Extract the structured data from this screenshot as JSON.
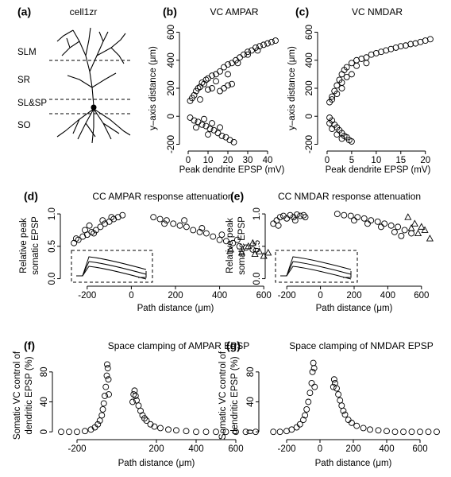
{
  "neuron_diagram": {
    "panel_label": "(a)",
    "title": "cell1zr",
    "layers": [
      "SLM",
      "SR",
      "SL&SP",
      "SO"
    ]
  },
  "chart_data": [
    {
      "type": "scatter",
      "panel_label": "(b)",
      "title": "VC AMPAR",
      "xlabel": "Peak dendrite EPSP (mV)",
      "ylabel": "y–axis distance (μm)",
      "xlim": [
        -2,
        46
      ],
      "ylim": [
        -220,
        620
      ],
      "xticks": [
        0,
        10,
        20,
        30,
        40
      ],
      "yticks": [
        -200,
        0,
        200,
        400,
        600
      ],
      "series": [
        {
          "marker": "circle",
          "color": "#000000",
          "x": [
            1,
            2,
            3,
            4,
            5,
            6,
            7,
            8,
            9,
            10,
            12,
            14,
            16,
            18,
            20,
            22,
            24,
            26,
            28,
            30,
            32,
            34,
            36,
            38,
            40,
            42,
            44,
            16,
            18,
            20,
            22,
            10,
            12,
            25,
            30,
            35,
            6,
            14,
            20,
            1,
            3,
            5,
            7,
            9,
            11,
            13,
            15,
            17,
            19,
            21,
            23,
            8,
            12,
            16,
            4,
            10
          ],
          "values": [
            110,
            130,
            150,
            180,
            200,
            210,
            240,
            230,
            260,
            270,
            290,
            300,
            320,
            350,
            370,
            380,
            400,
            420,
            440,
            460,
            470,
            490,
            500,
            510,
            520,
            530,
            540,
            180,
            200,
            220,
            230,
            190,
            200,
            380,
            440,
            470,
            120,
            250,
            300,
            -10,
            -30,
            -40,
            -60,
            -70,
            -90,
            -100,
            -120,
            -140,
            -150,
            -170,
            -185,
            -20,
            -50,
            -80,
            -80,
            -130
          ]
        }
      ]
    },
    {
      "type": "scatter",
      "panel_label": "(c)",
      "title": "VC NMDAR",
      "xlabel": "Peak dendrite EPSP (mV)",
      "ylabel": "y–axis distance (μm)",
      "xlim": [
        -0.8,
        21.5
      ],
      "ylim": [
        -220,
        620
      ],
      "xticks": [
        0,
        5,
        10,
        15,
        20
      ],
      "yticks": [
        -200,
        0,
        200,
        400,
        600
      ],
      "series": [
        {
          "marker": "circle",
          "color": "#000000",
          "x": [
            0.5,
            1,
            1.5,
            2,
            2.5,
            3,
            3.5,
            4,
            5,
            6,
            7,
            8,
            9,
            10,
            11,
            12,
            13,
            14,
            15,
            16,
            17,
            18,
            19,
            20,
            21,
            2,
            3,
            4,
            1,
            5,
            3,
            6,
            8,
            0.5,
            1,
            1.5,
            2,
            2.5,
            3,
            3.5,
            4,
            4.5,
            5,
            1,
            2,
            3,
            0.5
          ],
          "values": [
            100,
            140,
            180,
            220,
            260,
            300,
            330,
            350,
            380,
            400,
            410,
            420,
            440,
            450,
            460,
            470,
            480,
            490,
            500,
            505,
            515,
            520,
            530,
            540,
            550,
            160,
            240,
            280,
            120,
            300,
            200,
            360,
            380,
            -10,
            -30,
            -60,
            -80,
            -100,
            -120,
            -140,
            -150,
            -170,
            -180,
            -90,
            -130,
            -160,
            -50
          ]
        }
      ]
    },
    {
      "type": "scatter",
      "panel_label": "(d)",
      "title": "CC AMPAR response attenuation",
      "xlabel": "Path distance (μm)",
      "ylabel": [
        "Relative peak",
        "somatic EPSP"
      ],
      "xlim": [
        -300,
        700
      ],
      "ylim": [
        -0.03,
        1.05
      ],
      "xticks": [
        -200,
        0,
        200,
        400,
        600
      ],
      "yticks": [
        {
          "value": 0,
          "label": "0.0"
        },
        0.5,
        {
          "value": 1,
          "label": "1.0"
        }
      ],
      "series": [
        {
          "marker": "circle",
          "color": "#000000",
          "x": [
            -260,
            -240,
            -220,
            -200,
            -180,
            -160,
            -140,
            -120,
            -100,
            -80,
            -60,
            -40,
            -250,
            -210,
            -170,
            -130,
            -90,
            -190,
            100,
            130,
            160,
            190,
            220,
            250,
            280,
            310,
            340,
            370,
            400,
            430,
            460,
            490,
            520,
            550,
            150,
            240,
            320,
            410,
            480
          ],
          "values": [
            0.55,
            0.6,
            0.65,
            0.68,
            0.72,
            0.75,
            0.8,
            0.85,
            0.88,
            0.92,
            0.95,
            0.98,
            0.62,
            0.75,
            0.7,
            0.9,
            0.95,
            0.82,
            0.95,
            0.92,
            0.9,
            0.85,
            0.82,
            0.8,
            0.75,
            0.72,
            0.7,
            0.65,
            0.6,
            0.58,
            0.55,
            0.5,
            0.48,
            0.45,
            0.85,
            0.9,
            0.78,
            0.68,
            0.6
          ]
        },
        {
          "marker": "triangle",
          "color": "#000000",
          "x": [
            450,
            500,
            530,
            560,
            580,
            600,
            620,
            550
          ],
          "values": [
            0.45,
            0.4,
            0.5,
            0.38,
            0.42,
            0.35,
            0.4,
            0.55
          ]
        }
      ]
    },
    {
      "type": "scatter",
      "panel_label": "(e)",
      "title": "CC NMDAR response attenuation",
      "xlabel": "Path distance (μm)",
      "ylabel": [
        "Relative peak",
        "somatic EPSP"
      ],
      "xlim": [
        -300,
        700
      ],
      "ylim": [
        -0.03,
        1.05
      ],
      "xticks": [
        -200,
        0,
        200,
        400,
        600
      ],
      "yticks": [
        {
          "value": 0,
          "label": "0.0"
        },
        0.5,
        {
          "value": 1,
          "label": "1.0"
        }
      ],
      "series": [
        {
          "marker": "circle",
          "color": "#000000",
          "x": [
            -280,
            -260,
            -240,
            -220,
            -200,
            -180,
            -160,
            -140,
            -120,
            -100,
            -90,
            -250,
            -150,
            100,
            140,
            180,
            220,
            260,
            300,
            340,
            380,
            420,
            460,
            500,
            540,
            200,
            280,
            360,
            440,
            480
          ],
          "values": [
            0.85,
            0.9,
            0.95,
            0.97,
            0.93,
            0.98,
            0.95,
            0.99,
            0.97,
            0.98,
            0.95,
            0.82,
            0.9,
            1.0,
            0.98,
            0.97,
            0.95,
            0.93,
            0.9,
            0.88,
            0.85,
            0.82,
            0.8,
            0.75,
            0.7,
            0.9,
            0.85,
            0.8,
            0.72,
            0.66
          ]
        },
        {
          "marker": "triangle",
          "color": "#000000",
          "x": [
            520,
            560,
            600,
            620,
            650,
            580,
            540
          ],
          "values": [
            0.95,
            0.85,
            0.8,
            0.75,
            0.62,
            0.7,
            0.78
          ]
        }
      ]
    },
    {
      "type": "scatter",
      "panel_label": "(f)",
      "title": "Space clamping of AMPAR EPSP",
      "xlabel": "Path distance (μm)",
      "ylabel": [
        "Somatic VC control of",
        "dendritic EPSP (%)"
      ],
      "xlim": [
        -300,
        700
      ],
      "ylim": [
        -3,
        100
      ],
      "xticks": [
        -200,
        200,
        400,
        600
      ],
      "yticks": [
        0,
        40,
        80
      ],
      "series": [
        {
          "marker": "circle",
          "color": "#000000",
          "x": [
            -280,
            -240,
            -200,
            -160,
            -130,
            -110,
            -95,
            -85,
            -75,
            -70,
            -65,
            -60,
            -55,
            -50,
            -48,
            -45,
            -42,
            -40,
            80,
            85,
            90,
            95,
            100,
            110,
            120,
            130,
            140,
            150,
            170,
            190,
            220,
            260,
            300,
            350,
            400,
            450,
            500,
            550,
            600,
            650,
            700
          ],
          "values": [
            0,
            0,
            0,
            1,
            3,
            6,
            10,
            15,
            22,
            30,
            38,
            48,
            60,
            75,
            90,
            85,
            70,
            50,
            40,
            50,
            55,
            48,
            42,
            35,
            28,
            22,
            18,
            15,
            10,
            7,
            5,
            3,
            2,
            1,
            0,
            0,
            0,
            0,
            0,
            0,
            0
          ]
        }
      ]
    },
    {
      "type": "scatter",
      "panel_label": "(g)",
      "title": "Space clamping of NMDAR EPSP",
      "xlabel": "Path distance (μm)",
      "ylabel": [
        "Somatic VC control of",
        "dendritic EPSP (%)"
      ],
      "xlim": [
        -300,
        700
      ],
      "ylim": [
        -3,
        100
      ],
      "xticks": [
        -200,
        0,
        200,
        400,
        600
      ],
      "yticks": [
        0,
        40,
        80
      ],
      "series": [
        {
          "marker": "circle",
          "color": "#000000",
          "x": [
            -280,
            -240,
            -200,
            -170,
            -140,
            -120,
            -100,
            -90,
            -80,
            -70,
            -60,
            -50,
            -45,
            -40,
            -35,
            -32,
            80,
            85,
            90,
            100,
            110,
            120,
            130,
            140,
            150,
            170,
            190,
            220,
            260,
            300,
            350,
            400,
            450,
            500,
            550,
            600,
            650,
            700
          ],
          "values": [
            0,
            0,
            1,
            3,
            6,
            10,
            16,
            22,
            30,
            40,
            52,
            65,
            80,
            92,
            85,
            60,
            60,
            70,
            65,
            58,
            50,
            42,
            35,
            28,
            23,
            16,
            12,
            8,
            5,
            3,
            2,
            1,
            0,
            0,
            0,
            0,
            0,
            0
          ]
        }
      ]
    }
  ]
}
